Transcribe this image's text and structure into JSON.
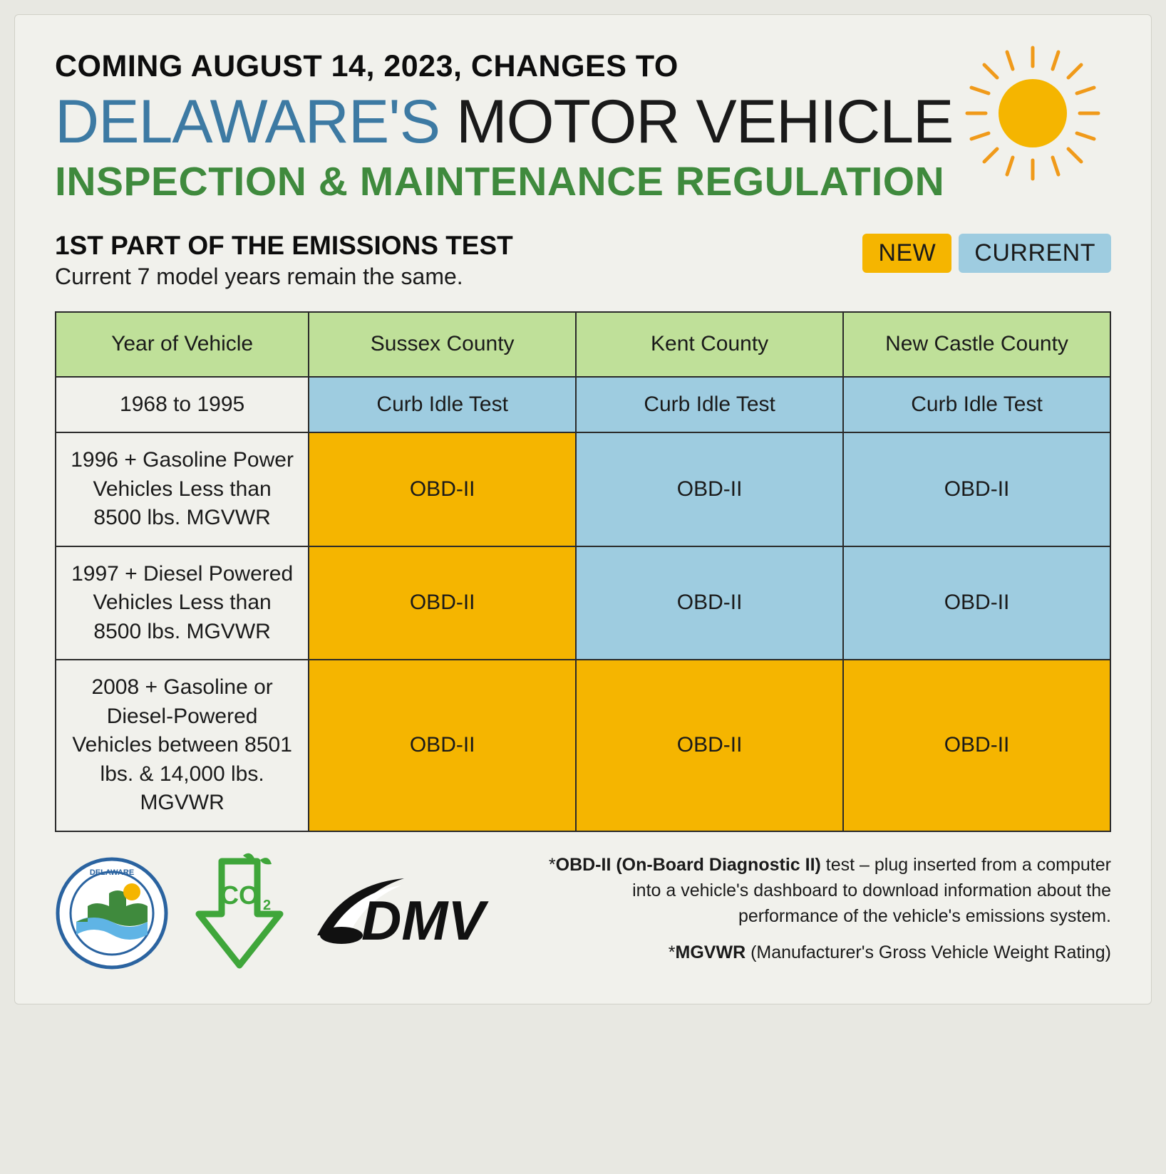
{
  "colors": {
    "page_bg": "#e8e8e2",
    "card_bg": "#f1f1ec",
    "card_border": "#d0d0c8",
    "text_black": "#0d0d0d",
    "title_blue": "#3d7aa3",
    "title_green": "#3f8a3d",
    "table_border": "#2a2a2a",
    "header_green": "#bfe099",
    "cell_blue": "#9ecce0",
    "cell_gold": "#f5b500",
    "cell_cream": "#f1f1ec",
    "sun_fill": "#f5b500",
    "sun_ray": "#f09a1a",
    "co2_green": "#3fa63a",
    "dmv_black": "#111111"
  },
  "typography": {
    "eyebrow_size_pt": 43,
    "title_size_pt": 86,
    "subtitle_size_pt": 57,
    "section_title_size_pt": 37,
    "section_sub_size_pt": 32,
    "legend_size_pt": 34,
    "table_header_size_pt": 30,
    "table_cell_size_pt": 30,
    "rowlabel_size_pt": 27,
    "footnote_size_pt": 25
  },
  "header": {
    "eyebrow": "COMING AUGUST 14, 2023, CHANGES TO",
    "title_blue": "DELAWARE'S",
    "title_black": "MOTOR VEHICLE",
    "subtitle": "INSPECTION & MAINTENANCE REGULATION",
    "sun_icon": "sun-icon"
  },
  "section": {
    "title": "1ST PART OF THE EMISSIONS TEST",
    "subtitle": "Current 7 model years remain the same."
  },
  "legend": {
    "new": "NEW",
    "current": "CURRENT"
  },
  "table": {
    "type": "table",
    "columns": [
      "Year of Vehicle",
      "Sussex County",
      "Kent County",
      "New Castle County"
    ],
    "column_count": 4,
    "col_widths_pct": [
      24,
      25.33,
      25.33,
      25.33
    ],
    "header_bg": "#bfe099",
    "border_color": "#2a2a2a",
    "rows": [
      {
        "label": "1968 to 1995",
        "cells": [
          {
            "text": "Curb Idle Test",
            "status": "current",
            "bg": "#9ecce0"
          },
          {
            "text": "Curb Idle Test",
            "status": "current",
            "bg": "#9ecce0"
          },
          {
            "text": "Curb Idle Test",
            "status": "current",
            "bg": "#9ecce0"
          }
        ]
      },
      {
        "label": "1996 + Gasoline Power Vehicles Less than 8500 lbs. MGVWR",
        "cells": [
          {
            "text": "OBD-II",
            "status": "new",
            "bg": "#f5b500"
          },
          {
            "text": "OBD-II",
            "status": "current",
            "bg": "#9ecce0"
          },
          {
            "text": "OBD-II",
            "status": "current",
            "bg": "#9ecce0"
          }
        ]
      },
      {
        "label": "1997 + Diesel Powered Vehicles Less than 8500 lbs. MGVWR",
        "cells": [
          {
            "text": "OBD-II",
            "status": "new",
            "bg": "#f5b500"
          },
          {
            "text": "OBD-II",
            "status": "current",
            "bg": "#9ecce0"
          },
          {
            "text": "OBD-II",
            "status": "current",
            "bg": "#9ecce0"
          }
        ]
      },
      {
        "label": "2008 + Gasoline or Diesel-Powered Vehicles between 8501 lbs. & 14,000 lbs. MGVWR",
        "cells": [
          {
            "text": "OBD-II",
            "status": "new",
            "bg": "#f5b500"
          },
          {
            "text": "OBD-II",
            "status": "new",
            "bg": "#f5b500"
          },
          {
            "text": "OBD-II",
            "status": "new",
            "bg": "#f5b500"
          }
        ]
      }
    ]
  },
  "footer": {
    "logo_dnrec": "delaware-dnrec-seal-icon",
    "logo_co2": "co2-down-arrow-icon",
    "logo_dmv_text": "DMV",
    "footnotes": [
      {
        "lead": "*",
        "bold": "OBD-II (On-Board Diagnostic II)",
        "rest": " test – plug inserted from a computer into a vehicle's dashboard to download information about the performance of the vehicle's emissions system."
      },
      {
        "lead": "*",
        "bold": "MGVWR",
        "rest": " (Manufacturer's Gross Vehicle Weight Rating)"
      }
    ]
  }
}
